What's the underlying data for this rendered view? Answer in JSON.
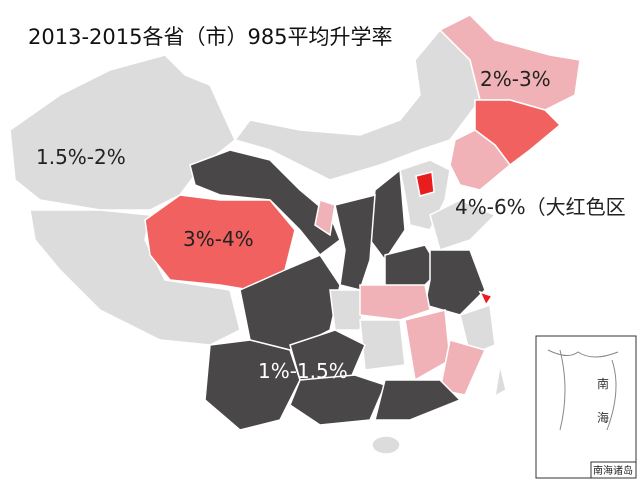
{
  "map": {
    "title": "2013-2015各省（市）985平均升学率",
    "labels": [
      "2%-3%",
      "1.5%-2%",
      "3%-4%",
      "4%-6%（大红色区",
      "1%-1.5%"
    ],
    "inset": {
      "title": "南海诸岛",
      "sea": [
        "南",
        "海"
      ]
    }
  }
}
